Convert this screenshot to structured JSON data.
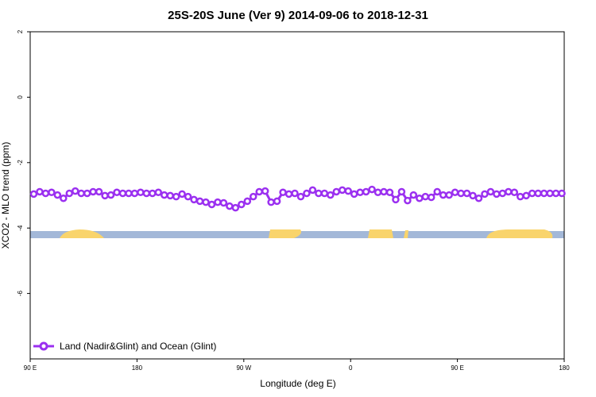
{
  "chart_data": {
    "type": "line",
    "title": "25S-20S June (Ver 9)   2014-09-06 to 2018-12-31",
    "x_label": "Longitude (deg E)",
    "y_label": "XCO2 - MLO trend (ppm)",
    "xlim": [
      90,
      540
    ],
    "xticks": [
      {
        "value": 90,
        "label": "90 E"
      },
      180,
      {
        "value": 270,
        "label": "90 W"
      },
      {
        "value": 360,
        "label": "0"
      },
      {
        "value": 450,
        "label": "90 E"
      },
      {
        "value": 540,
        "label": "180"
      }
    ],
    "ylim": [
      -8,
      2
    ],
    "yticks": [
      2,
      0,
      -2,
      -4,
      -6
    ],
    "legend": "bottom-left",
    "x": [
      93,
      98,
      103,
      108,
      113,
      118,
      123,
      128,
      133,
      138,
      143,
      148,
      153,
      158,
      163,
      168,
      173,
      178,
      183,
      188,
      193,
      198,
      203,
      208,
      213,
      218,
      223,
      228,
      233,
      238,
      243,
      248,
      253,
      258,
      263,
      268,
      273,
      278,
      283,
      288,
      293,
      298,
      303,
      308,
      313,
      318,
      323,
      328,
      333,
      338,
      343,
      348,
      353,
      358,
      363,
      368,
      373,
      378,
      383,
      388,
      393,
      398,
      403,
      408,
      413,
      418,
      423,
      428,
      433,
      438,
      443,
      448,
      453,
      458,
      463,
      468,
      473,
      478,
      483,
      488,
      493,
      498,
      503,
      508,
      513,
      518,
      523,
      528,
      533,
      538
    ],
    "series": [
      {
        "name": "Land (Nadir&Glint) and Ocean (Glint)",
        "color": "#9b30f0",
        "values": [
          -2.96,
          -2.89,
          -2.94,
          -2.91,
          -2.99,
          -3.09,
          -2.94,
          -2.87,
          -2.94,
          -2.94,
          -2.89,
          -2.89,
          -3.01,
          -2.99,
          -2.91,
          -2.94,
          -2.94,
          -2.94,
          -2.91,
          -2.94,
          -2.94,
          -2.91,
          -2.99,
          -3.01,
          -3.04,
          -2.96,
          -3.04,
          -3.13,
          -3.18,
          -3.21,
          -3.28,
          -3.21,
          -3.23,
          -3.33,
          -3.38,
          -3.28,
          -3.18,
          -3.04,
          -2.89,
          -2.87,
          -3.21,
          -3.18,
          -2.91,
          -2.96,
          -2.94,
          -3.04,
          -2.94,
          -2.84,
          -2.94,
          -2.94,
          -2.99,
          -2.89,
          -2.84,
          -2.87,
          -2.96,
          -2.91,
          -2.89,
          -2.82,
          -2.91,
          -2.89,
          -2.91,
          -3.13,
          -2.89,
          -3.16,
          -2.99,
          -3.09,
          -3.04,
          -3.06,
          -2.89,
          -2.99,
          -2.99,
          -2.91,
          -2.94,
          -2.94,
          -3.01,
          -3.09,
          -2.96,
          -2.89,
          -2.96,
          -2.94,
          -2.89,
          -2.91,
          -3.04,
          -3.01,
          -2.94,
          -2.94,
          -2.94,
          -2.94,
          -2.94,
          -2.94
        ]
      }
    ]
  }
}
